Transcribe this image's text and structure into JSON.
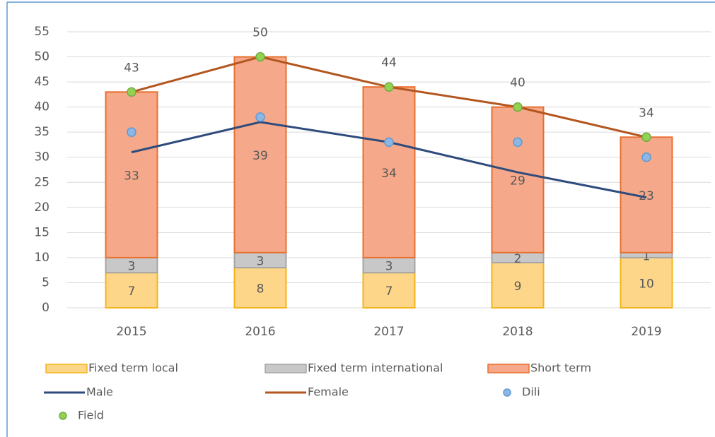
{
  "chart_data": {
    "type": "bar",
    "stacked": true,
    "categories": [
      "2015",
      "2016",
      "2017",
      "2018",
      "2019"
    ],
    "series": [
      {
        "name": "Fixed term local",
        "type": "bar",
        "color": "#fdd68a",
        "stroke": "#f3b51b",
        "values": [
          7,
          8,
          7,
          9,
          10
        ]
      },
      {
        "name": "Fixed term international",
        "type": "bar",
        "color": "#c8c8c8",
        "stroke": "#a5a5a5",
        "values": [
          3,
          3,
          3,
          2,
          1
        ]
      },
      {
        "name": "Short term",
        "type": "bar",
        "color": "#f5a98a",
        "stroke": "#e8702f",
        "values": [
          33,
          39,
          34,
          29,
          23
        ]
      },
      {
        "name": "Male",
        "type": "line",
        "color": "#2f4b7c",
        "values": [
          31,
          37,
          33,
          27,
          22
        ]
      },
      {
        "name": "Female",
        "type": "line",
        "color": "#b4561f",
        "values": [
          43,
          50,
          44,
          40,
          34
        ]
      },
      {
        "name": "Dili",
        "type": "scatter",
        "color": "#8eb6e3",
        "stroke": "#5b9bd5",
        "values": [
          35,
          38,
          33,
          33,
          30
        ]
      },
      {
        "name": "Field",
        "type": "scatter",
        "color": "#93d151",
        "stroke": "#70ad47",
        "values": [
          43,
          50,
          44,
          40,
          34
        ],
        "labels": true
      }
    ],
    "ylim": [
      0,
      55
    ],
    "yticks": [
      0,
      5,
      10,
      15,
      20,
      25,
      30,
      35,
      40,
      45,
      50,
      55
    ],
    "grid": true,
    "legend": "bottom"
  }
}
